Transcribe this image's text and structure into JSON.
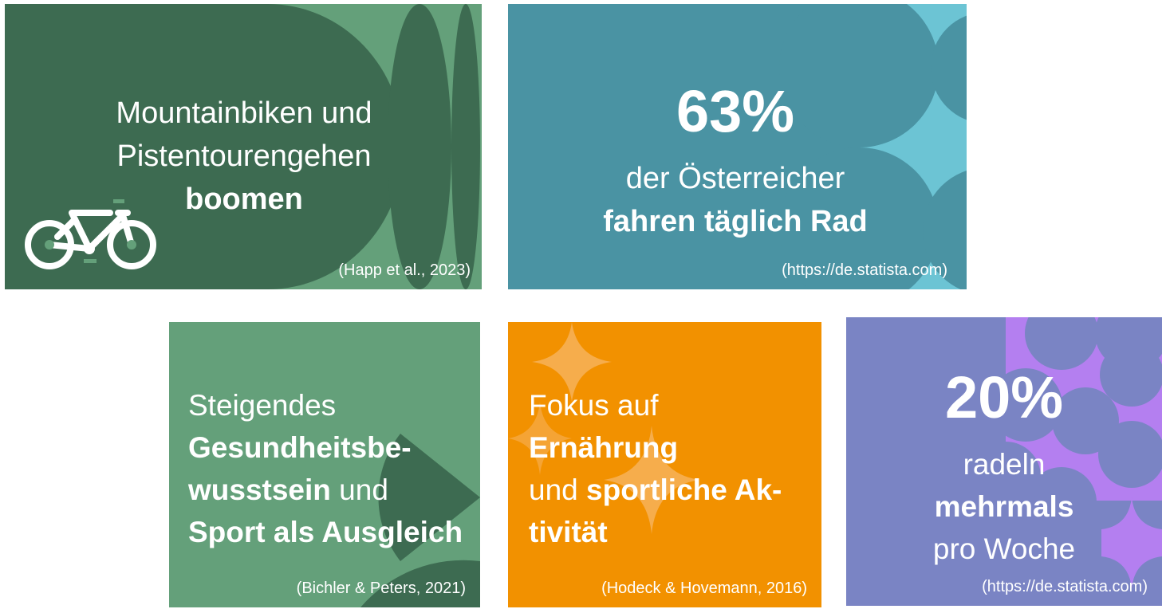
{
  "cards": [
    {
      "lines": [
        "Mountainbiken und",
        "Pistentourengehen"
      ],
      "bold": "boomen",
      "source": "(Happ et al., 2023)"
    },
    {
      "big": "63%",
      "line1": "der Österreicher",
      "bold": "fahren täglich Rad",
      "source": "(https://de.statista.com)"
    },
    {
      "line1": "Steigendes",
      "bold1": "Gesundheitsbe-",
      "bold2": "wusstsein",
      "plain2": " und",
      "bold3": "Sport als Ausgleich",
      "source": "(Bichler & Peters, 2021)"
    },
    {
      "line1": "Fokus auf",
      "bold1": "Ernährung",
      "plain2": "und ",
      "bold2": "sportliche Ak-",
      "bold3": "tivität",
      "source": "(Hodeck & Hovemann, 2016)"
    },
    {
      "big": "20%",
      "line1": "radeln",
      "bold": "mehrmals",
      "line3": "pro Woche",
      "source": "(https://de.statista.com)"
    }
  ],
  "colors": {
    "dark_green": "#3d6b51",
    "mid_green": "#64a07a",
    "teal": "#4a93a3",
    "light_teal": "#6cc4d4",
    "orange": "#f29100",
    "light_orange": "#f6ad4c",
    "periwinkle": "#7a84c4",
    "lilac": "#b47ff0"
  },
  "icons": [
    "bicycle-icon"
  ]
}
